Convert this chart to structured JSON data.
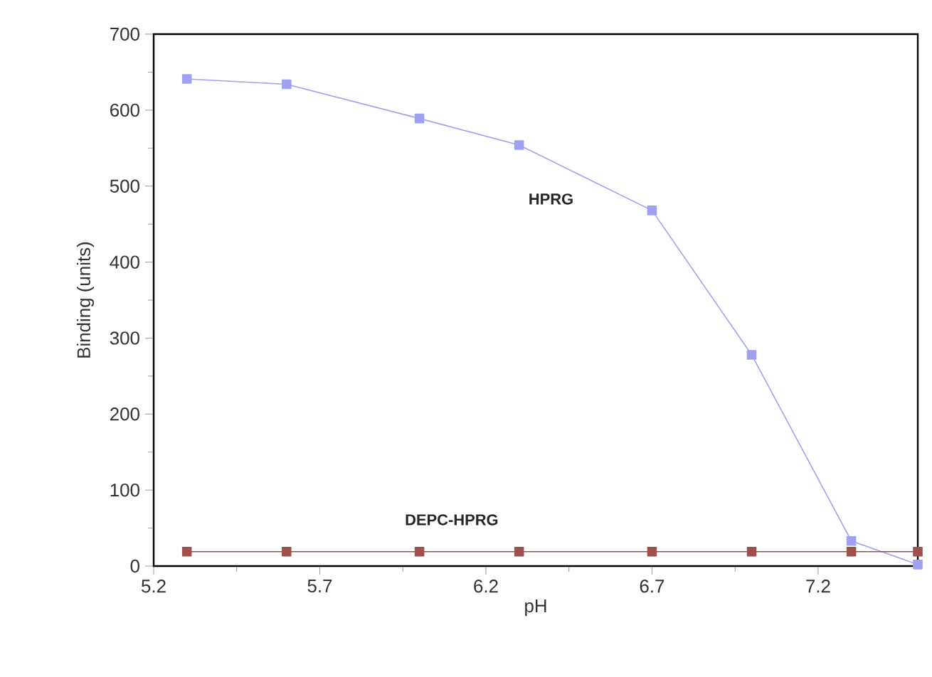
{
  "chart_data": {
    "type": "line",
    "xlabel": "pH",
    "ylabel": "Binding (units)",
    "x": [
      5.3,
      5.6,
      6.0,
      6.3,
      6.7,
      7.0,
      7.3,
      7.5
    ],
    "series": [
      {
        "color": "#a0a0f0",
        "values": [
          641,
          634,
          589,
          554,
          468,
          278,
          33,
          2
        ]
      },
      {
        "color": "#a0504c",
        "values": [
          19,
          19,
          19,
          19,
          19,
          19,
          19,
          19
        ]
      }
    ],
    "annotations": [
      "HPRG",
      "DEPC-HPRG"
    ],
    "xlim": [
      5.2,
      7.5
    ],
    "ylim": [
      0,
      700
    ],
    "xticks": [
      5.2,
      5.7,
      6.2,
      6.7,
      7.2
    ],
    "yticks": [
      0,
      100,
      200,
      300,
      400,
      500,
      600,
      700
    ],
    "marker": "square",
    "line_style": "solid"
  }
}
